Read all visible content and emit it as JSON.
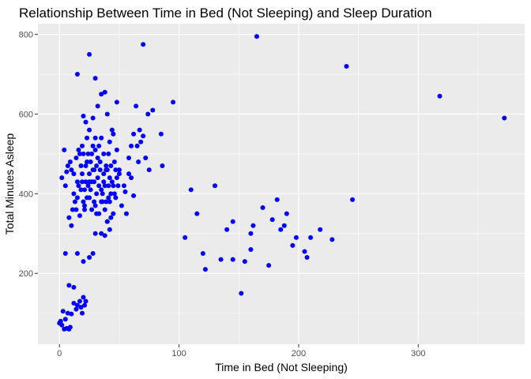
{
  "chart_data": {
    "type": "scatter",
    "title": "Relationship Between Time in Bed (Not Sleeping) and Sleep Duration",
    "xlabel": "Time in Bed (Not Sleeping)",
    "ylabel": "Total Minutes Asleep",
    "xlim": [
      -18,
      389
    ],
    "ylim": [
      22,
      827
    ],
    "x_ticks": [
      0,
      100,
      200,
      300
    ],
    "y_ticks": [
      200,
      400,
      600,
      800
    ],
    "grid": true,
    "point_color": "#0000ff",
    "panel_color": "#ebebeb",
    "gridline_color": "#ffffff",
    "points": [
      [
        0,
        75
      ],
      [
        1,
        80
      ],
      [
        2,
        70
      ],
      [
        3,
        105
      ],
      [
        4,
        60
      ],
      [
        5,
        85
      ],
      [
        6,
        62
      ],
      [
        7,
        100
      ],
      [
        8,
        60
      ],
      [
        9,
        65
      ],
      [
        10,
        98
      ],
      [
        12,
        125
      ],
      [
        14,
        110
      ],
      [
        15,
        120
      ],
      [
        17,
        130
      ],
      [
        18,
        115
      ],
      [
        19,
        100
      ],
      [
        20,
        140
      ],
      [
        21,
        120
      ],
      [
        22,
        130
      ],
      [
        8,
        170
      ],
      [
        12,
        165
      ],
      [
        5,
        250
      ],
      [
        15,
        250
      ],
      [
        20,
        230
      ],
      [
        25,
        240
      ],
      [
        28,
        250
      ],
      [
        30,
        300
      ],
      [
        35,
        300
      ],
      [
        38,
        295
      ],
      [
        40,
        330
      ],
      [
        42,
        310
      ],
      [
        2,
        440
      ],
      [
        4,
        510
      ],
      [
        5,
        420
      ],
      [
        6,
        455
      ],
      [
        7,
        470
      ],
      [
        8,
        340
      ],
      [
        9,
        480
      ],
      [
        10,
        460
      ],
      [
        10,
        320
      ],
      [
        11,
        360
      ],
      [
        12,
        400
      ],
      [
        13,
        380
      ],
      [
        14,
        490
      ],
      [
        15,
        430
      ],
      [
        16,
        510
      ],
      [
        17,
        345
      ],
      [
        18,
        410
      ],
      [
        19,
        450
      ],
      [
        20,
        500
      ],
      [
        21,
        370
      ],
      [
        22,
        470
      ],
      [
        23,
        540
      ],
      [
        24,
        420
      ],
      [
        25,
        390
      ],
      [
        26,
        480
      ],
      [
        27,
        360
      ],
      [
        28,
        520
      ],
      [
        29,
        430
      ],
      [
        30,
        510
      ],
      [
        31,
        400
      ],
      [
        32,
        490
      ],
      [
        33,
        350
      ],
      [
        34,
        460
      ],
      [
        35,
        540
      ],
      [
        36,
        380
      ],
      [
        37,
        450
      ],
      [
        38,
        420
      ],
      [
        39,
        470
      ],
      [
        40,
        330
      ],
      [
        41,
        500
      ],
      [
        42,
        440
      ],
      [
        43,
        400
      ],
      [
        44,
        560
      ],
      [
        45,
        420
      ],
      [
        46,
        480
      ],
      [
        47,
        390
      ],
      [
        48,
        510
      ],
      [
        50,
        450
      ],
      [
        52,
        370
      ],
      [
        54,
        420
      ],
      [
        56,
        350
      ],
      [
        58,
        490
      ],
      [
        60,
        440
      ],
      [
        62,
        550
      ],
      [
        65,
        520
      ],
      [
        68,
        530
      ],
      [
        70,
        545
      ],
      [
        72,
        490
      ],
      [
        12,
        450
      ],
      [
        14,
        360
      ],
      [
        16,
        420
      ],
      [
        18,
        470
      ],
      [
        20,
        380
      ],
      [
        22,
        430
      ],
      [
        24,
        500
      ],
      [
        26,
        410
      ],
      [
        28,
        460
      ],
      [
        30,
        370
      ],
      [
        32,
        440
      ],
      [
        34,
        480
      ],
      [
        36,
        400
      ],
      [
        38,
        360
      ],
      [
        40,
        460
      ],
      [
        42,
        380
      ],
      [
        44,
        430
      ],
      [
        46,
        400
      ],
      [
        48,
        440
      ],
      [
        15,
        390
      ],
      [
        17,
        500
      ],
      [
        19,
        430
      ],
      [
        21,
        410
      ],
      [
        23,
        480
      ],
      [
        25,
        450
      ],
      [
        27,
        430
      ],
      [
        29,
        380
      ],
      [
        31,
        470
      ],
      [
        33,
        420
      ],
      [
        35,
        410
      ],
      [
        37,
        500
      ],
      [
        39,
        380
      ],
      [
        41,
        420
      ],
      [
        43,
        470
      ],
      [
        45,
        350
      ],
      [
        47,
        460
      ],
      [
        49,
        420
      ],
      [
        19,
        520
      ],
      [
        21,
        360
      ],
      [
        23,
        390
      ],
      [
        25,
        430
      ],
      [
        27,
        500
      ],
      [
        29,
        460
      ],
      [
        31,
        350
      ],
      [
        33,
        520
      ],
      [
        35,
        380
      ],
      [
        37,
        430
      ],
      [
        39,
        460
      ],
      [
        41,
        390
      ],
      [
        43,
        340
      ],
      [
        20,
        595
      ],
      [
        22,
        580
      ],
      [
        25,
        560
      ],
      [
        28,
        590
      ],
      [
        30,
        540
      ],
      [
        32,
        620
      ],
      [
        35,
        650
      ],
      [
        38,
        655
      ],
      [
        40,
        600
      ],
      [
        42,
        530
      ],
      [
        45,
        550
      ],
      [
        48,
        630
      ],
      [
        15,
        700
      ],
      [
        25,
        750
      ],
      [
        30,
        690
      ],
      [
        60,
        520
      ],
      [
        64,
        620
      ],
      [
        67,
        560
      ],
      [
        74,
        600
      ],
      [
        78,
        610
      ],
      [
        85,
        550
      ],
      [
        95,
        630
      ],
      [
        70,
        775
      ],
      [
        50,
        460
      ],
      [
        55,
        405
      ],
      [
        58,
        450
      ],
      [
        62,
        395
      ],
      [
        66,
        480
      ],
      [
        75,
        460
      ],
      [
        86,
        470
      ],
      [
        110,
        410
      ],
      [
        130,
        420
      ],
      [
        105,
        290
      ],
      [
        115,
        350
      ],
      [
        120,
        250
      ],
      [
        122,
        210
      ],
      [
        135,
        235
      ],
      [
        140,
        310
      ],
      [
        145,
        330
      ],
      [
        145,
        235
      ],
      [
        155,
        230
      ],
      [
        152,
        150
      ],
      [
        160,
        300
      ],
      [
        160,
        260
      ],
      [
        162,
        320
      ],
      [
        170,
        365
      ],
      [
        175,
        220
      ],
      [
        178,
        335
      ],
      [
        182,
        385
      ],
      [
        185,
        310
      ],
      [
        188,
        320
      ],
      [
        190,
        350
      ],
      [
        195,
        270
      ],
      [
        198,
        290
      ],
      [
        205,
        255
      ],
      [
        207,
        240
      ],
      [
        210,
        290
      ],
      [
        218,
        310
      ],
      [
        228,
        285
      ],
      [
        165,
        795
      ],
      [
        240,
        720
      ],
      [
        245,
        385
      ],
      [
        318,
        645
      ],
      [
        372,
        590
      ]
    ]
  }
}
